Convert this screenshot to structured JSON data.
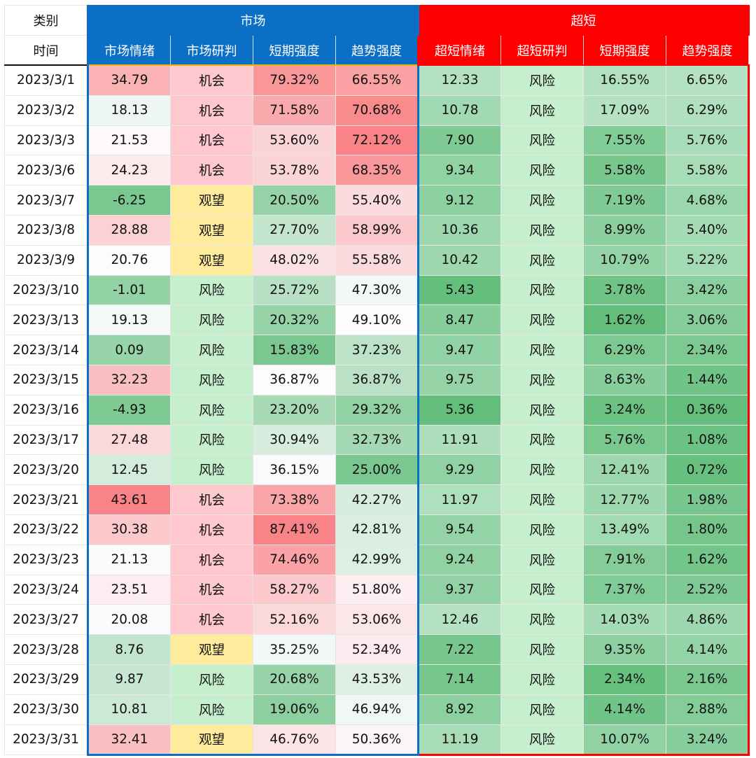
{
  "header": {
    "category_label": "类别",
    "time_label": "时间",
    "group_market": "市场",
    "group_ultra": "超短",
    "market_cols": [
      "市场情绪",
      "市场研判",
      "短期强度",
      "趋势强度"
    ],
    "ultra_cols": [
      "超短情绪",
      "超短研判",
      "短期强度",
      "趋势强度"
    ]
  },
  "colors": {
    "market_header": "#0b6fc6",
    "ultra_header": "#ff0000",
    "signal_opportunity_bg": "#ffc7ce",
    "signal_opportunity_text": "#c0001a",
    "signal_watch_bg": "#ffeb9c",
    "signal_watch_text": "#9a5a00",
    "signal_risk_bg": "#c6efce",
    "signal_risk_text": "#127a2a",
    "scale_high": "#f8696b",
    "scale_mid": "#fcfcff",
    "scale_low": "#63be7b"
  },
  "rows": [
    {
      "date": "2023/3/1",
      "m_sent": "34.79",
      "m_sig": "机会",
      "m_short": "79.32%",
      "m_trend": "66.55%",
      "u_sent": "12.33",
      "u_sig": "风险",
      "u_short": "16.55%",
      "u_trend": "6.65%"
    },
    {
      "date": "2023/3/2",
      "m_sent": "18.13",
      "m_sig": "机会",
      "m_short": "71.58%",
      "m_trend": "70.68%",
      "u_sent": "10.78",
      "u_sig": "风险",
      "u_short": "17.09%",
      "u_trend": "6.29%"
    },
    {
      "date": "2023/3/3",
      "m_sent": "21.53",
      "m_sig": "机会",
      "m_short": "53.60%",
      "m_trend": "72.12%",
      "u_sent": "7.90",
      "u_sig": "风险",
      "u_short": "7.55%",
      "u_trend": "5.76%"
    },
    {
      "date": "2023/3/6",
      "m_sent": "24.23",
      "m_sig": "机会",
      "m_short": "53.78%",
      "m_trend": "68.35%",
      "u_sent": "9.34",
      "u_sig": "风险",
      "u_short": "5.58%",
      "u_trend": "5.58%"
    },
    {
      "date": "2023/3/7",
      "m_sent": "-6.25",
      "m_sig": "观望",
      "m_short": "20.50%",
      "m_trend": "55.40%",
      "u_sent": "9.12",
      "u_sig": "风险",
      "u_short": "7.19%",
      "u_trend": "4.68%"
    },
    {
      "date": "2023/3/8",
      "m_sent": "28.88",
      "m_sig": "观望",
      "m_short": "27.70%",
      "m_trend": "58.99%",
      "u_sent": "10.36",
      "u_sig": "风险",
      "u_short": "8.99%",
      "u_trend": "5.40%"
    },
    {
      "date": "2023/3/9",
      "m_sent": "20.76",
      "m_sig": "观望",
      "m_short": "48.02%",
      "m_trend": "55.58%",
      "u_sent": "10.42",
      "u_sig": "风险",
      "u_short": "10.79%",
      "u_trend": "5.22%"
    },
    {
      "date": "2023/3/10",
      "m_sent": "-1.01",
      "m_sig": "风险",
      "m_short": "25.72%",
      "m_trend": "47.30%",
      "u_sent": "5.43",
      "u_sig": "风险",
      "u_short": "3.78%",
      "u_trend": "3.42%"
    },
    {
      "date": "2023/3/13",
      "m_sent": "19.13",
      "m_sig": "风险",
      "m_short": "20.32%",
      "m_trend": "49.10%",
      "u_sent": "8.47",
      "u_sig": "风险",
      "u_short": "1.62%",
      "u_trend": "3.06%"
    },
    {
      "date": "2023/3/14",
      "m_sent": "0.09",
      "m_sig": "风险",
      "m_short": "15.83%",
      "m_trend": "37.23%",
      "u_sent": "9.47",
      "u_sig": "风险",
      "u_short": "6.29%",
      "u_trend": "2.34%"
    },
    {
      "date": "2023/3/15",
      "m_sent": "32.23",
      "m_sig": "风险",
      "m_short": "36.87%",
      "m_trend": "36.87%",
      "u_sent": "9.75",
      "u_sig": "风险",
      "u_short": "8.63%",
      "u_trend": "1.44%"
    },
    {
      "date": "2023/3/16",
      "m_sent": "-4.93",
      "m_sig": "风险",
      "m_short": "23.20%",
      "m_trend": "29.32%",
      "u_sent": "5.36",
      "u_sig": "风险",
      "u_short": "3.24%",
      "u_trend": "0.36%"
    },
    {
      "date": "2023/3/17",
      "m_sent": "27.48",
      "m_sig": "风险",
      "m_short": "30.94%",
      "m_trend": "32.73%",
      "u_sent": "11.91",
      "u_sig": "风险",
      "u_short": "5.76%",
      "u_trend": "1.08%"
    },
    {
      "date": "2023/3/20",
      "m_sent": "12.45",
      "m_sig": "风险",
      "m_short": "36.15%",
      "m_trend": "25.00%",
      "u_sent": "9.29",
      "u_sig": "风险",
      "u_short": "12.41%",
      "u_trend": "0.72%"
    },
    {
      "date": "2023/3/21",
      "m_sent": "43.61",
      "m_sig": "机会",
      "m_short": "73.38%",
      "m_trend": "42.27%",
      "u_sent": "11.97",
      "u_sig": "风险",
      "u_short": "12.77%",
      "u_trend": "1.98%"
    },
    {
      "date": "2023/3/22",
      "m_sent": "30.38",
      "m_sig": "机会",
      "m_short": "87.41%",
      "m_trend": "42.81%",
      "u_sent": "9.54",
      "u_sig": "风险",
      "u_short": "13.49%",
      "u_trend": "1.80%"
    },
    {
      "date": "2023/3/23",
      "m_sent": "21.13",
      "m_sig": "机会",
      "m_short": "74.46%",
      "m_trend": "42.99%",
      "u_sent": "9.24",
      "u_sig": "风险",
      "u_short": "7.91%",
      "u_trend": "1.62%"
    },
    {
      "date": "2023/3/24",
      "m_sent": "23.51",
      "m_sig": "机会",
      "m_short": "58.27%",
      "m_trend": "51.80%",
      "u_sent": "9.37",
      "u_sig": "风险",
      "u_short": "7.37%",
      "u_trend": "2.52%"
    },
    {
      "date": "2023/3/27",
      "m_sent": "20.08",
      "m_sig": "机会",
      "m_short": "52.16%",
      "m_trend": "53.06%",
      "u_sent": "12.46",
      "u_sig": "风险",
      "u_short": "14.03%",
      "u_trend": "4.86%"
    },
    {
      "date": "2023/3/28",
      "m_sent": "8.76",
      "m_sig": "观望",
      "m_short": "35.25%",
      "m_trend": "52.34%",
      "u_sent": "7.22",
      "u_sig": "风险",
      "u_short": "9.35%",
      "u_trend": "4.14%"
    },
    {
      "date": "2023/3/29",
      "m_sent": "9.87",
      "m_sig": "风险",
      "m_short": "20.68%",
      "m_trend": "43.53%",
      "u_sent": "7.14",
      "u_sig": "风险",
      "u_short": "2.34%",
      "u_trend": "2.16%"
    },
    {
      "date": "2023/3/30",
      "m_sent": "10.81",
      "m_sig": "风险",
      "m_short": "19.06%",
      "m_trend": "46.94%",
      "u_sent": "8.92",
      "u_sig": "风险",
      "u_short": "4.14%",
      "u_trend": "2.88%"
    },
    {
      "date": "2023/3/31",
      "m_sent": "32.41",
      "m_sig": "观望",
      "m_short": "46.76%",
      "m_trend": "50.36%",
      "u_sent": "11.19",
      "u_sig": "风险",
      "u_short": "10.07%",
      "u_trend": "3.24%"
    }
  ]
}
